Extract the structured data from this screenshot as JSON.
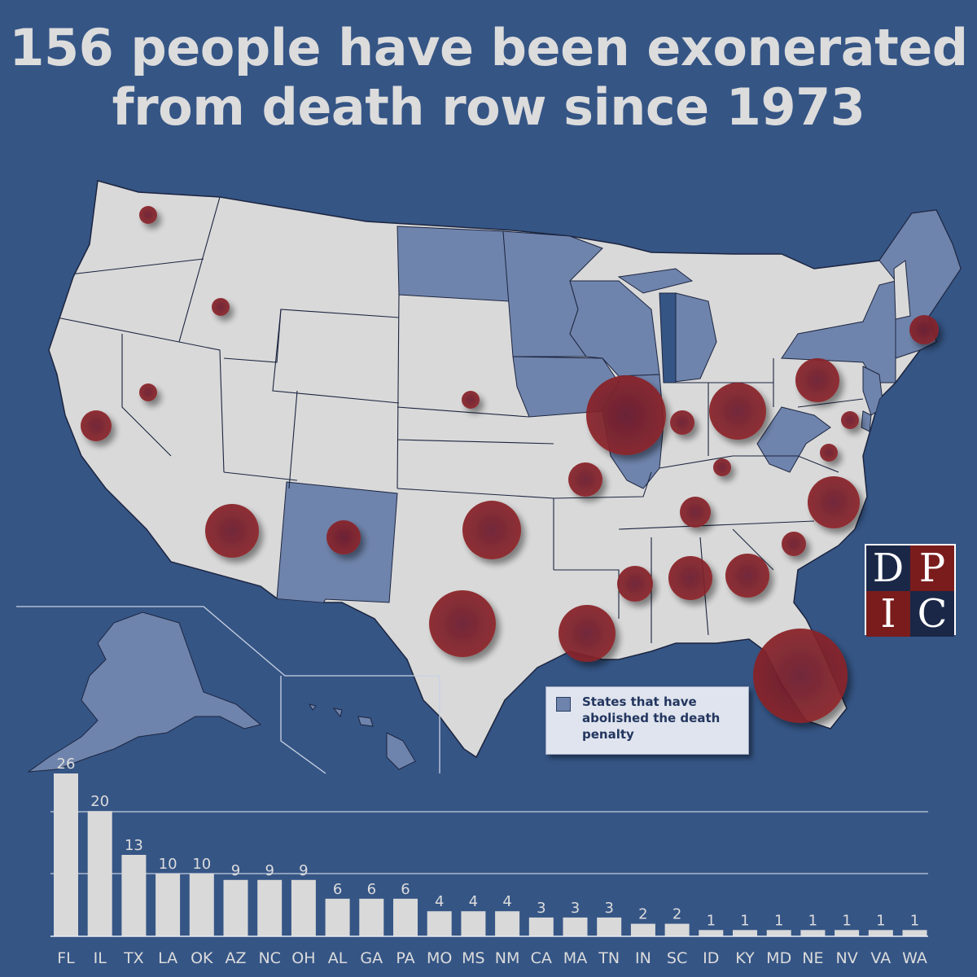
{
  "title": "156 people have been exonerated from death row since 1973",
  "legend": {
    "label": "States that have abolished the death penalty",
    "swatch_color": "#6f84ac"
  },
  "logo": {
    "letters": [
      "D",
      "P",
      "I",
      "C"
    ]
  },
  "colors": {
    "background": "#355585",
    "state_fill": "#d9d9d9",
    "abolished_fill": "#6f84ac",
    "bubble": "#7a1e28",
    "bar": "#d9d9d9"
  },
  "chart_data": {
    "type": "bar",
    "categories": [
      "FL",
      "IL",
      "TX",
      "LA",
      "OK",
      "AZ",
      "NC",
      "OH",
      "AL",
      "GA",
      "PA",
      "MO",
      "MS",
      "NM",
      "CA",
      "MA",
      "TN",
      "IN",
      "SC",
      "ID",
      "KY",
      "MD",
      "NE",
      "NV",
      "VA",
      "WA"
    ],
    "values": [
      26,
      20,
      13,
      10,
      10,
      9,
      9,
      9,
      6,
      6,
      6,
      4,
      4,
      4,
      3,
      3,
      3,
      2,
      2,
      1,
      1,
      1,
      1,
      1,
      1,
      1
    ],
    "ylim": [
      0,
      26
    ],
    "grid": true,
    "title": "",
    "xlabel": "",
    "ylabel": ""
  }
}
